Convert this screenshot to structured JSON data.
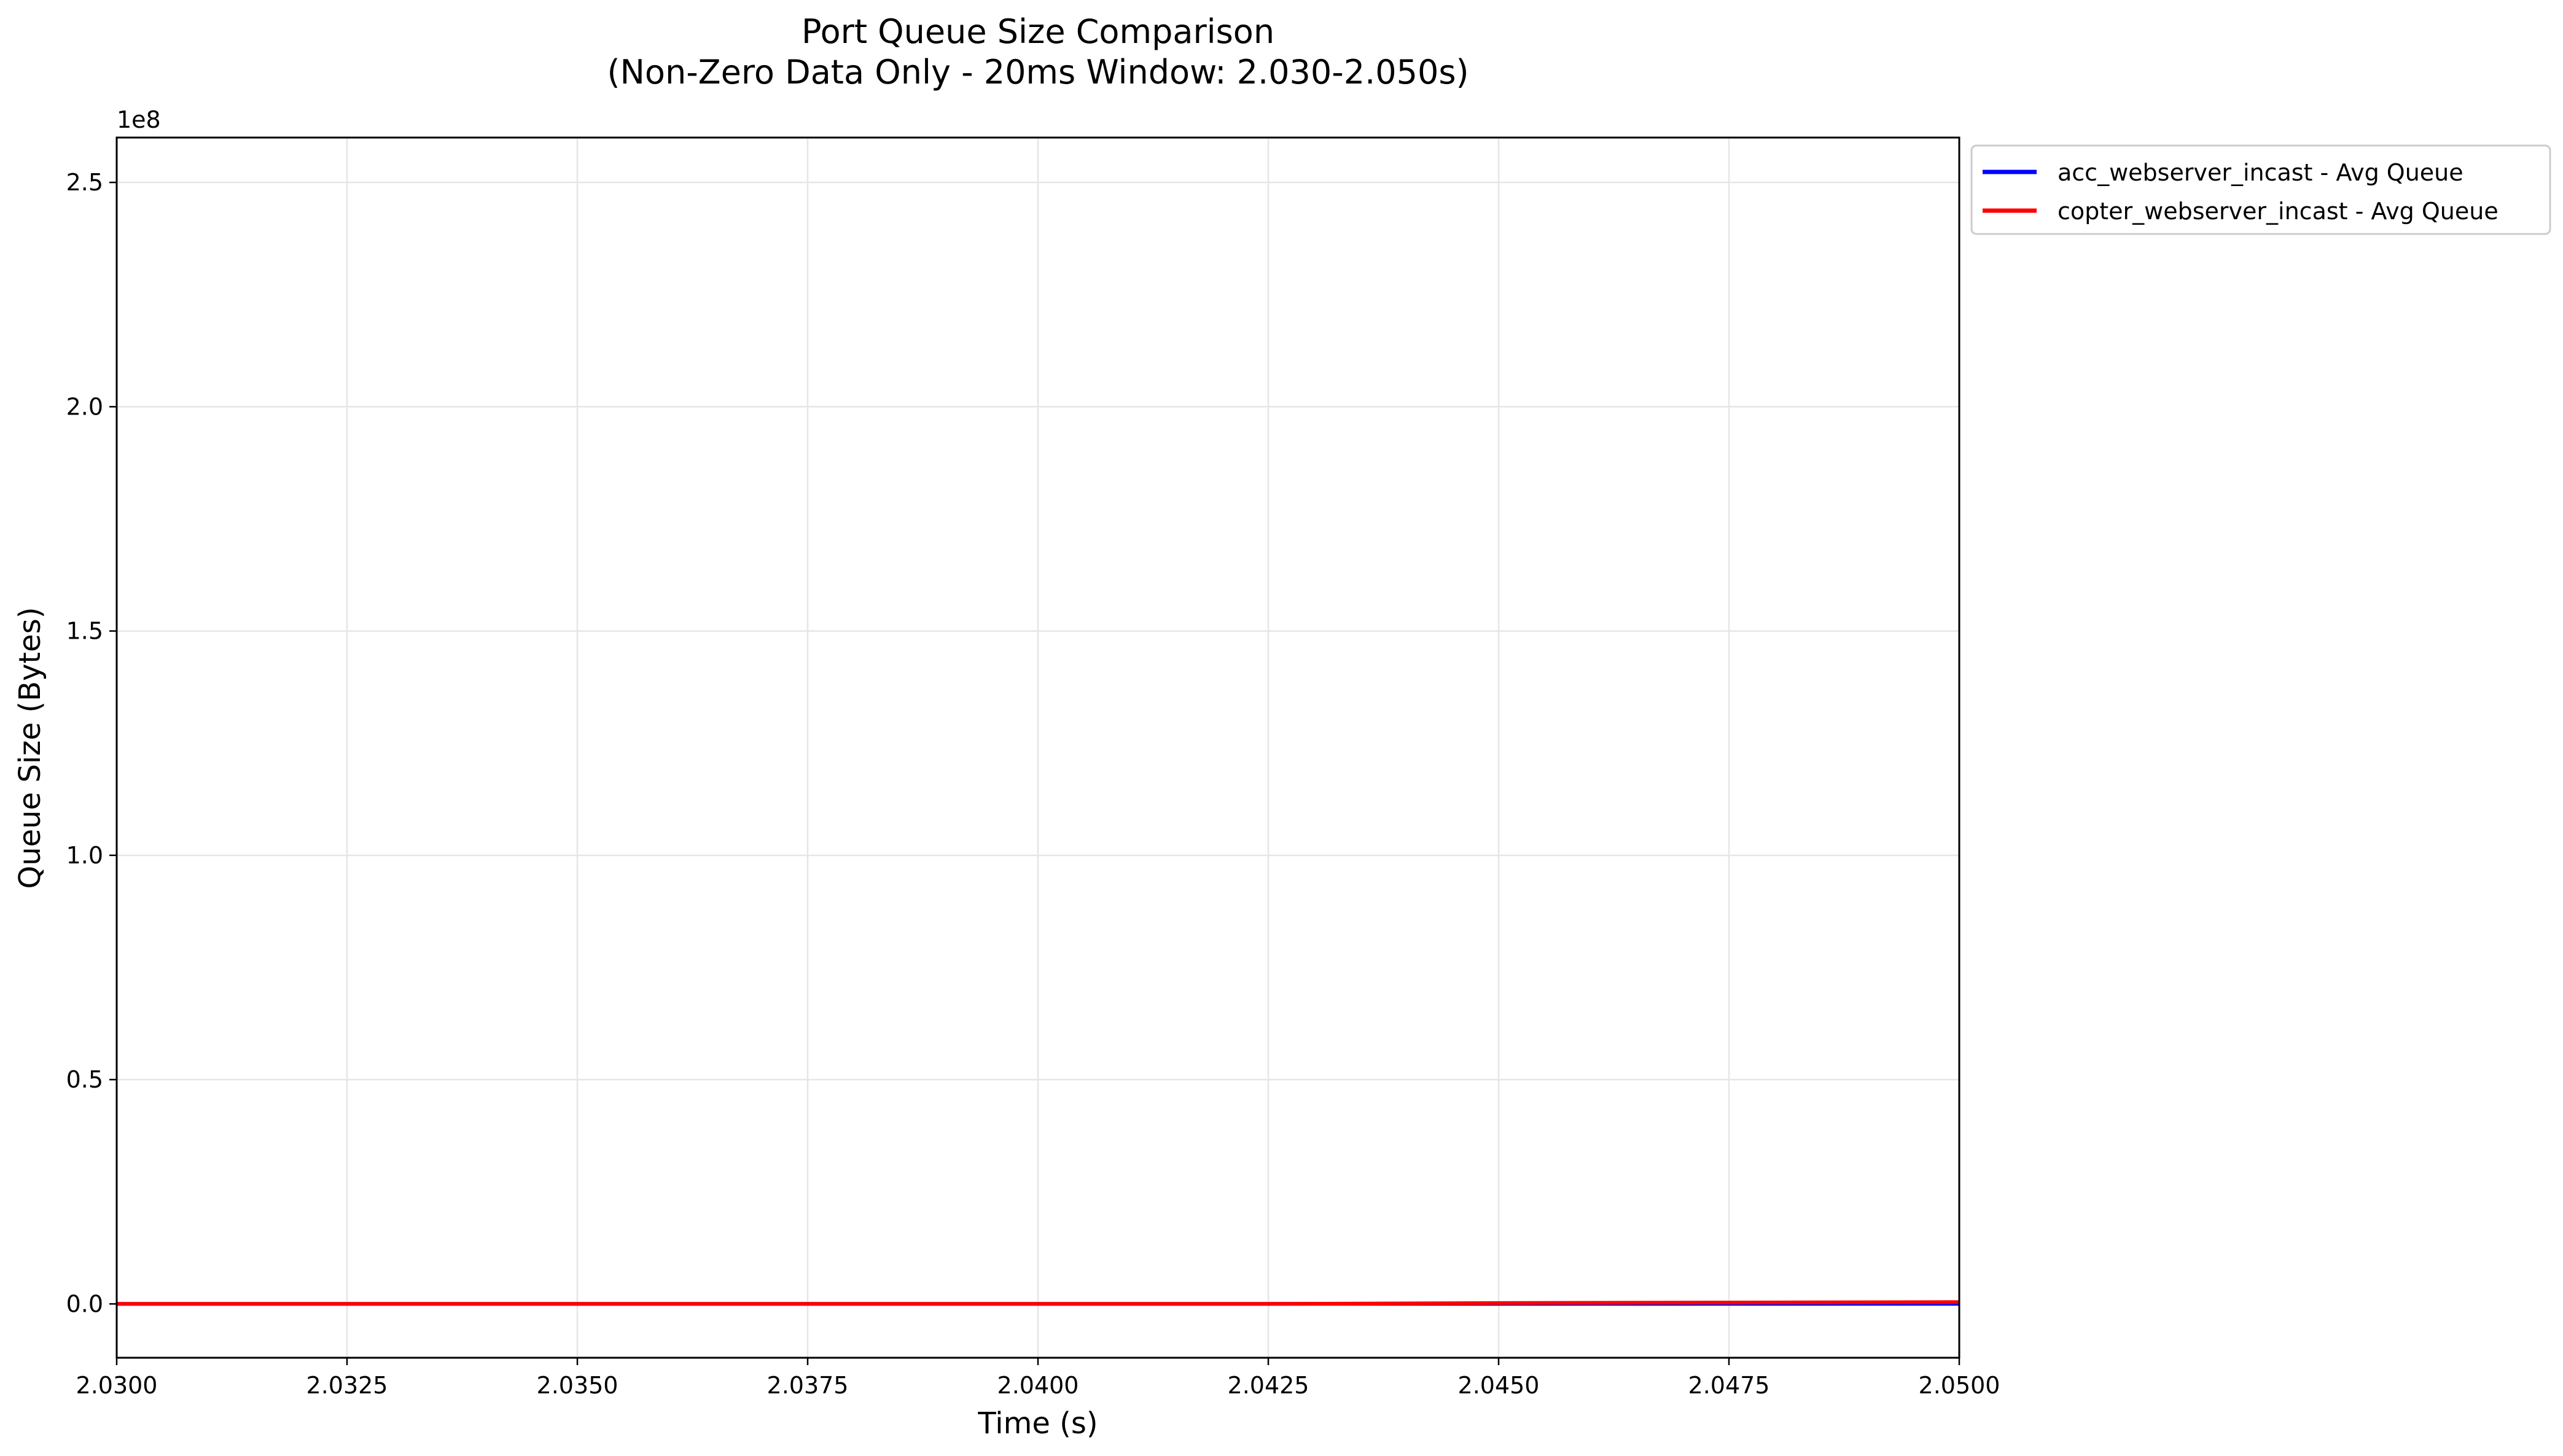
{
  "chart_data": {
    "type": "line",
    "title": "Port Queue Size Comparison",
    "subtitle": "(Non-Zero Data Only - 20ms Window: 2.030-2.050s)",
    "xlabel": "Time (s)",
    "ylabel": "Queue Size (Bytes)",
    "y_offset_label": "1e8",
    "xlim": [
      2.03,
      2.05
    ],
    "ylim": [
      -12000000,
      260000000
    ],
    "x_ticks": [
      2.03,
      2.0325,
      2.035,
      2.0375,
      2.04,
      2.0425,
      2.045,
      2.0475,
      2.05
    ],
    "x_tick_labels": [
      "2.0300",
      "2.0325",
      "2.0350",
      "2.0375",
      "2.0400",
      "2.0425",
      "2.0450",
      "2.0475",
      "2.0500"
    ],
    "y_ticks": [
      0,
      50000000,
      100000000,
      150000000,
      200000000,
      250000000
    ],
    "y_tick_labels": [
      "0.0",
      "0.5",
      "1.0",
      "1.5",
      "2.0",
      "2.5"
    ],
    "grid": true,
    "legend_position": "outside-top-right",
    "series": [
      {
        "name": "acc_webserver_incast - Avg Queue",
        "color": "#0000ff",
        "x": [
          2.03,
          2.0325,
          2.035,
          2.0375,
          2.04,
          2.0425,
          2.045,
          2.0475,
          2.05
        ],
        "y": [
          0,
          0,
          0,
          0,
          0,
          0,
          0,
          0,
          0
        ]
      },
      {
        "name": "copter_webserver_incast - Avg Queue",
        "color": "#ff0000",
        "x": [
          2.03,
          2.0325,
          2.035,
          2.0375,
          2.04,
          2.0425,
          2.045,
          2.0475,
          2.05
        ],
        "y": [
          0,
          0,
          0,
          0,
          0,
          0,
          200000,
          300000,
          400000
        ]
      }
    ]
  }
}
